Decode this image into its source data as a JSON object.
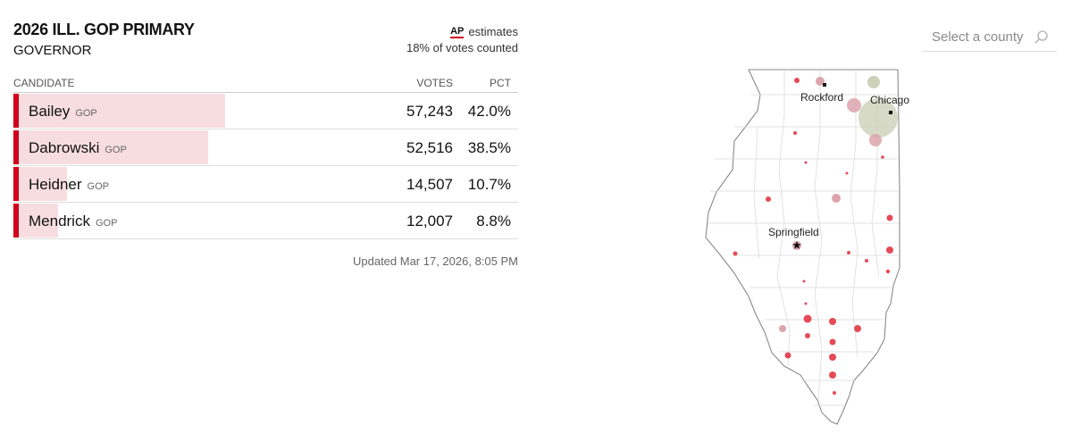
{
  "race": {
    "title": "2026 ILL. GOP PRIMARY",
    "office": "GOVERNOR"
  },
  "ap": {
    "logo": "AP",
    "estimates_label": "estimates",
    "counted_label": "18% of votes counted"
  },
  "table": {
    "headers": {
      "candidate": "CANDIDATE",
      "votes": "VOTES",
      "pct": "PCT"
    },
    "rows": [
      {
        "name": "Bailey",
        "party": "GOP",
        "votes": "57,243",
        "pct": "42.0%",
        "share": 0.42
      },
      {
        "name": "Dabrowski",
        "party": "GOP",
        "votes": "52,516",
        "pct": "38.5%",
        "share": 0.385
      },
      {
        "name": "Heidner",
        "party": "GOP",
        "votes": "14,507",
        "pct": "10.7%",
        "share": 0.107
      },
      {
        "name": "Mendrick",
        "party": "GOP",
        "votes": "12,007",
        "pct": "8.8%",
        "share": 0.088
      }
    ]
  },
  "updated": "Updated Mar 17, 2026, 8:05 PM",
  "search": {
    "placeholder": "Select a county",
    "icon": "search-icon"
  },
  "map": {
    "cities": [
      "Rockford",
      "Chicago",
      "Springfield"
    ]
  },
  "colors": {
    "accent": "#d0021b",
    "bar_fill": "#f7dde0",
    "dot_red": "#e64a57",
    "dot_pink": "#dca5ad",
    "dot_olive": "#ccd1b8"
  }
}
